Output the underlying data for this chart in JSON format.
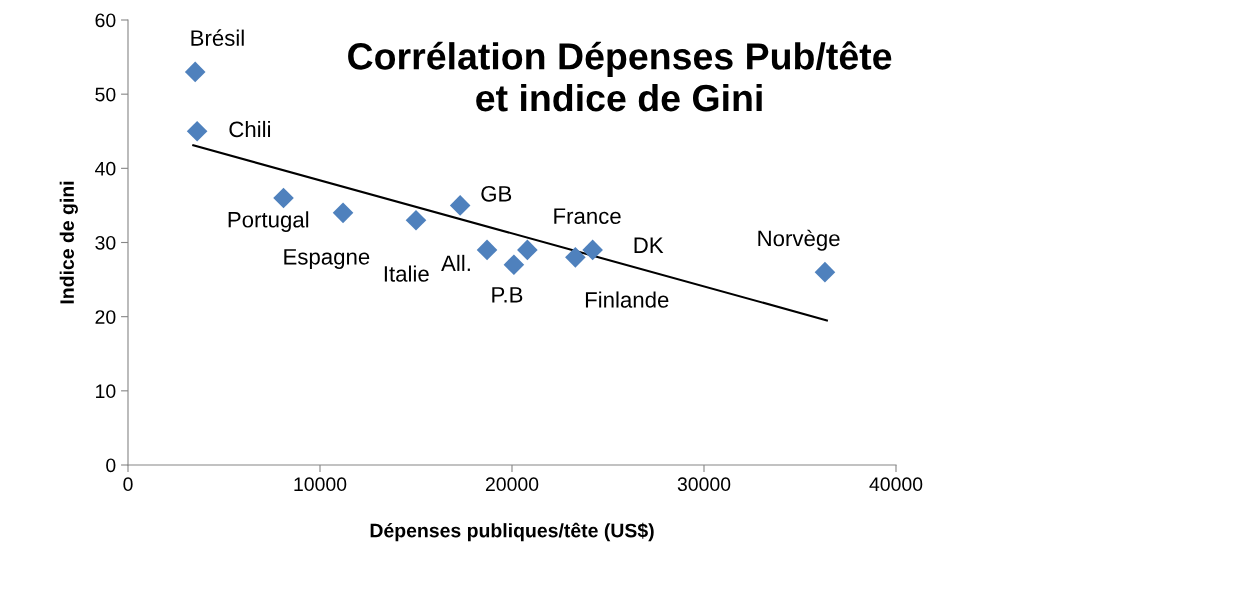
{
  "chart_data": {
    "type": "scatter",
    "title": "Corrélation Dépenses Pub/tête\net indice de Gini",
    "xlabel": "Dépenses publiques/tête (US$)",
    "ylabel": "Indice de gini",
    "xlim": [
      0,
      40000
    ],
    "xticks": [
      0,
      10000,
      20000,
      30000,
      40000
    ],
    "ylim": [
      0,
      60
    ],
    "yticks": [
      0,
      10,
      20,
      30,
      40,
      50,
      60
    ],
    "grid": false,
    "marker": "diamond",
    "series": [
      {
        "color": "#4f81bd",
        "x": [
          3500,
          3600,
          8100,
          11200,
          15000,
          17300,
          18700,
          20100,
          20800,
          23300,
          24200,
          36300
        ],
        "values": [
          53,
          45,
          36,
          34,
          33,
          35,
          29,
          27,
          29,
          28,
          29,
          26
        ]
      },
      {
        "type": "line",
        "color": "#000000",
        "marker": "none",
        "x": [
          3400,
          36400
        ],
        "values": [
          43.1,
          19.5
        ]
      }
    ],
    "annotations": [
      {
        "text": "Brésil",
        "x": 3500,
        "y": 53
      },
      {
        "text": "Chili",
        "x": 3600,
        "y": 45
      },
      {
        "text": "Portugal",
        "x": 8100,
        "y": 36
      },
      {
        "text": "Espagne",
        "x": 11200,
        "y": 34
      },
      {
        "text": "Italie",
        "x": 15000,
        "y": 33
      },
      {
        "text": "GB",
        "x": 17300,
        "y": 35
      },
      {
        "text": "All.",
        "x": 18700,
        "y": 29
      },
      {
        "text": "P.B",
        "x": 20100,
        "y": 27
      },
      {
        "text": "France",
        "x": 20800,
        "y": 29
      },
      {
        "text": "Finlande",
        "x": 23300,
        "y": 28
      },
      {
        "text": "DK",
        "x": 24200,
        "y": 29
      },
      {
        "text": "Norvège",
        "x": 36300,
        "y": 26
      }
    ]
  }
}
